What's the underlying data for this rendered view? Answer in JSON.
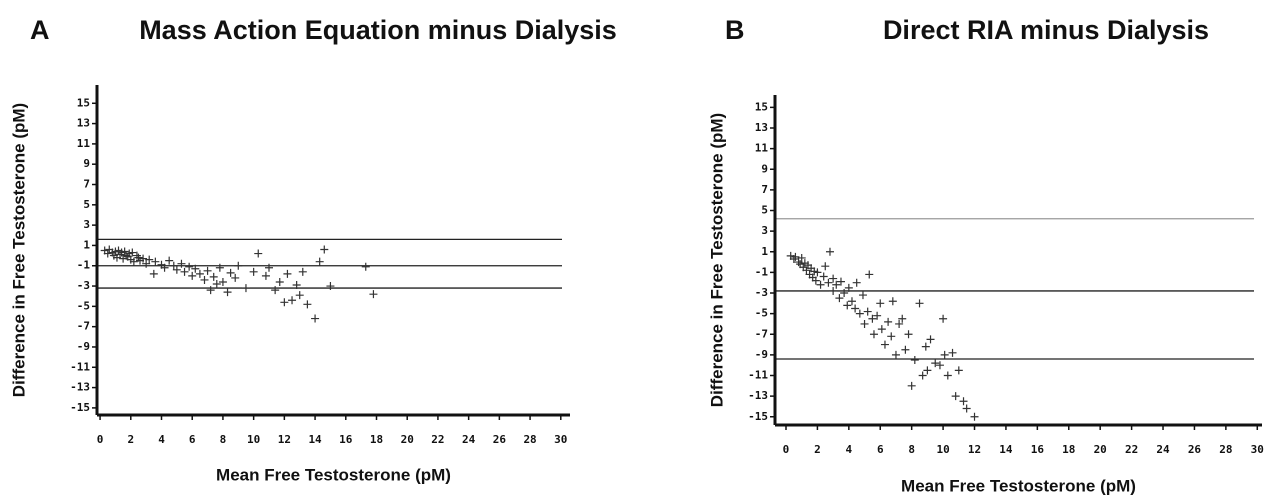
{
  "chart_data": [
    {
      "type": "scatter",
      "panel_label": "A",
      "title": "Mass Action Equation minus Dialysis",
      "x_label": "Mean Free Testosterone (pM)",
      "y_label": "Difference in Free Testosterone (pM)",
      "xlim": [
        -0.2,
        30.6
      ],
      "ylim": [
        -15.7,
        16.8
      ],
      "xticks": [
        0,
        2,
        4,
        6,
        8,
        10,
        12,
        14,
        16,
        18,
        20,
        22,
        24,
        26,
        28,
        30
      ],
      "yticks": [
        15,
        13,
        11,
        9,
        7,
        5,
        3,
        1,
        -1,
        -3,
        -5,
        -7,
        -9,
        -11,
        -13,
        -15
      ],
      "reference_lines": [
        {
          "y": 1.6,
          "color": "#222222"
        },
        {
          "y": -1.0,
          "color": "#222222"
        },
        {
          "y": -3.2,
          "color": "#222222"
        }
      ],
      "marker_color": "#333333",
      "x": [
        0.3,
        0.5,
        0.6,
        0.8,
        0.9,
        1.0,
        1.1,
        1.2,
        1.3,
        1.4,
        1.5,
        1.6,
        1.7,
        1.8,
        1.9,
        2.0,
        2.1,
        2.2,
        2.4,
        2.5,
        2.6,
        2.8,
        3.0,
        3.2,
        3.5,
        3.6,
        4.0,
        4.2,
        4.5,
        4.8,
        5.0,
        5.3,
        5.5,
        5.8,
        6.0,
        6.2,
        6.5,
        6.8,
        7.0,
        7.2,
        7.4,
        7.6,
        7.8,
        8.0,
        8.3,
        8.5,
        8.8,
        9.0,
        9.5,
        10.0,
        10.3,
        10.8,
        11.0,
        11.4,
        11.7,
        12.0,
        12.2,
        12.5,
        12.8,
        13.0,
        13.2,
        13.5,
        14.0,
        14.3,
        14.6,
        15.0,
        17.3,
        17.8
      ],
      "values": [
        0.5,
        0.2,
        0.6,
        0.3,
        0.0,
        0.4,
        -0.2,
        0.5,
        0.1,
        0.3,
        -0.3,
        0.4,
        0.0,
        -0.1,
        0.2,
        -0.4,
        0.3,
        -0.6,
        0.0,
        -0.2,
        -0.5,
        -0.3,
        -0.8,
        -0.4,
        -1.8,
        -0.6,
        -0.9,
        -1.2,
        -0.5,
        -1.0,
        -1.4,
        -0.8,
        -1.6,
        -1.1,
        -2.0,
        -1.3,
        -1.8,
        -2.4,
        -1.5,
        -3.4,
        -2.1,
        -2.8,
        -1.2,
        -2.6,
        -3.6,
        -1.7,
        -2.2,
        -1.0,
        -3.2,
        -1.6,
        0.2,
        -2.0,
        -1.2,
        -3.4,
        -2.6,
        -4.6,
        -1.8,
        -4.4,
        -2.9,
        -3.9,
        -1.6,
        -4.8,
        -6.2,
        -0.6,
        0.6,
        -3.0,
        -1.1,
        -3.8
      ]
    },
    {
      "type": "scatter",
      "panel_label": "B",
      "title": "Direct RIA minus Dialysis",
      "x_label": "Mean Free Testosterone (pM)",
      "y_label": "Difference in Free Testosterone (pM)",
      "xlim": [
        -0.7,
        30.3
      ],
      "ylim": [
        -15.8,
        16.2
      ],
      "xticks": [
        0,
        2,
        4,
        6,
        8,
        10,
        12,
        14,
        16,
        18,
        20,
        22,
        24,
        26,
        28,
        30
      ],
      "yticks": [
        15,
        13,
        11,
        9,
        7,
        5,
        3,
        1,
        -1,
        -3,
        -5,
        -7,
        -9,
        -11,
        -13,
        -15
      ],
      "reference_lines": [
        {
          "y": 4.2,
          "color": "#9a9a9a"
        },
        {
          "y": -2.8,
          "color": "#222222"
        },
        {
          "y": -9.4,
          "color": "#222222"
        }
      ],
      "marker_color": "#333333",
      "x": [
        0.3,
        0.5,
        0.6,
        0.8,
        0.9,
        1.0,
        1.1,
        1.2,
        1.3,
        1.4,
        1.5,
        1.6,
        1.7,
        1.8,
        1.9,
        2.0,
        2.2,
        2.4,
        2.5,
        2.7,
        2.8,
        3.0,
        3.0,
        3.2,
        3.4,
        3.5,
        3.7,
        3.9,
        4.0,
        4.2,
        4.4,
        4.5,
        4.7,
        4.9,
        5.0,
        5.2,
        5.3,
        5.5,
        5.6,
        5.8,
        6.0,
        6.1,
        6.3,
        6.5,
        6.7,
        6.8,
        7.0,
        7.2,
        7.4,
        7.6,
        7.8,
        8.0,
        8.2,
        8.5,
        8.7,
        8.9,
        9.0,
        9.2,
        9.5,
        9.8,
        10.0,
        10.1,
        10.3,
        10.6,
        10.8,
        11.0,
        11.3,
        11.5,
        12.0
      ],
      "values": [
        0.6,
        0.3,
        0.5,
        0.0,
        -0.2,
        0.4,
        -0.5,
        -0.1,
        -0.8,
        -0.3,
        -1.2,
        -0.6,
        -1.5,
        -0.9,
        -1.8,
        -1.0,
        -2.2,
        -1.4,
        -0.4,
        -2.0,
        1.0,
        -1.6,
        -2.8,
        -2.2,
        -3.5,
        -1.9,
        -3.0,
        -4.2,
        -2.5,
        -3.8,
        -4.5,
        -2.0,
        -5.0,
        -3.2,
        -6.0,
        -4.8,
        -1.2,
        -5.5,
        -7.0,
        -5.2,
        -4.0,
        -6.5,
        -8.0,
        -5.8,
        -7.2,
        -3.8,
        -9.0,
        -6.0,
        -5.5,
        -8.5,
        -7.0,
        -12.0,
        -9.5,
        -4.0,
        -11.0,
        -8.2,
        -10.5,
        -7.5,
        -9.8,
        -10.0,
        -5.5,
        -9.0,
        -11.0,
        -8.8,
        -13.0,
        -10.5,
        -13.5,
        -14.2,
        -15.0
      ]
    }
  ]
}
